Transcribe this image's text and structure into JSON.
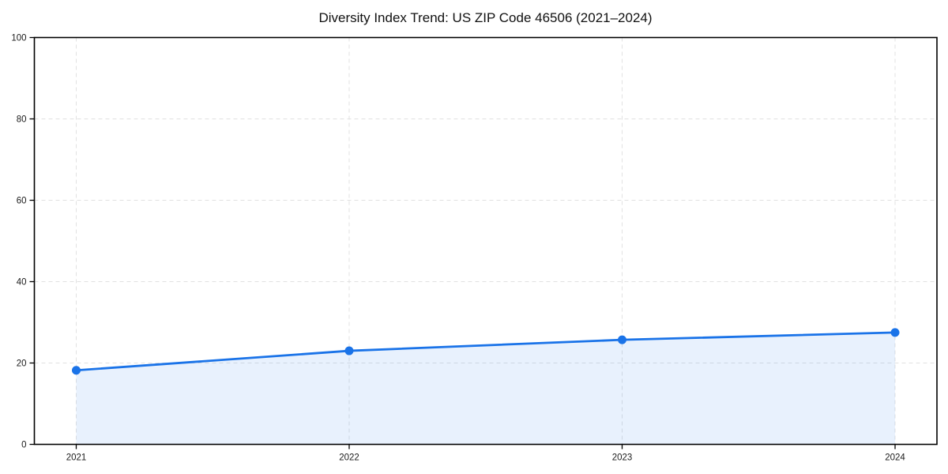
{
  "chart_data": {
    "type": "line",
    "title": "Diversity Index Trend: US ZIP Code 46506 (2021–2024)",
    "categories": [
      "2021",
      "2022",
      "2023",
      "2024"
    ],
    "series": [
      {
        "name": "Diversity Index",
        "values": [
          18.2,
          23.0,
          25.7,
          27.5
        ]
      }
    ],
    "xlabel": "",
    "ylabel": "",
    "ylim": [
      0,
      100
    ],
    "yticks": [
      0,
      20,
      40,
      60,
      80,
      100
    ],
    "grid": true,
    "grid_style": "dashed",
    "legend_position": "none",
    "area_fill_to_zero": true,
    "marker_shape": "circle",
    "colors": {
      "line": "#1a73e8",
      "marker": "#1a73e8",
      "area_fill": "rgba(26,115,232,0.10)",
      "gridline": "#e1e1e1",
      "axis_frame": "#000000",
      "tick_text": "#1a1a1a",
      "background": "#ffffff"
    }
  }
}
